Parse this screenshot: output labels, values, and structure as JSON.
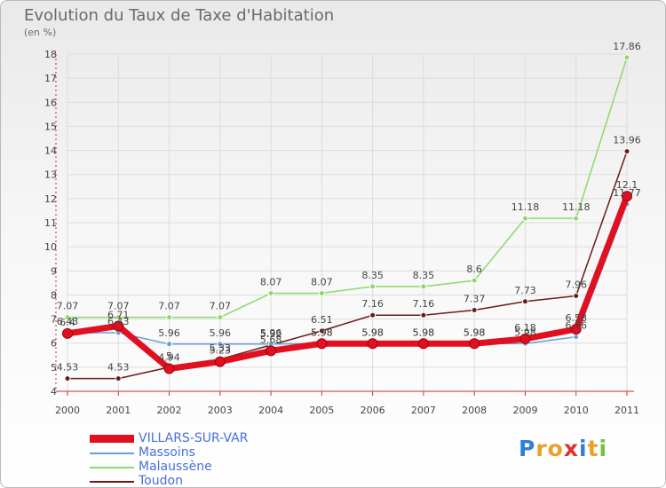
{
  "chart_data": {
    "type": "line",
    "title": "Evolution du Taux de Taxe d'Habitation",
    "subtitle": "(en %)",
    "categories": [
      "2000",
      "2001",
      "2002",
      "2003",
      "2004",
      "2005",
      "2006",
      "2007",
      "2008",
      "2009",
      "2010",
      "2011"
    ],
    "ylim": [
      4,
      18
    ],
    "yticks": [
      "4",
      "5",
      "6",
      "7",
      "8",
      "9",
      "10",
      "11",
      "12",
      "13",
      "14",
      "15",
      "16",
      "17",
      "18"
    ],
    "grid": true,
    "legend_position": "bottom-left",
    "series": [
      {
        "name": "Toudon",
        "color": "#6b1a1a",
        "values": [
          4.53,
          4.53,
          5,
          5.33,
          5.92,
          6.51,
          7.16,
          7.16,
          7.37,
          7.73,
          7.96,
          13.96
        ],
        "labels": [
          "4.53",
          "4.53",
          "5",
          "5.33",
          "5.92",
          "6.51",
          "7.16",
          "7.16",
          "7.37",
          "7.73",
          "7.96",
          "13.96"
        ]
      },
      {
        "name": "Malaussène",
        "color": "#8fd86b",
        "values": [
          7.07,
          7.07,
          7.07,
          7.07,
          8.07,
          8.07,
          8.35,
          8.35,
          8.6,
          11.18,
          11.18,
          17.86
        ],
        "labels": [
          "7.07",
          "7.07",
          "7.07",
          "7.07",
          "8.07",
          "8.07",
          "8.35",
          "8.35",
          "8.6",
          "11.18",
          "11.18",
          "17.86"
        ]
      },
      {
        "name": "Massoins",
        "color": "#6a9ed8",
        "values": [
          6.43,
          6.43,
          5.96,
          5.96,
          5.96,
          5.98,
          5.98,
          5.98,
          5.98,
          5.98,
          6.26,
          11.77
        ],
        "labels": [
          "6.43",
          "6.43",
          "5.96",
          "5.96",
          "5.96",
          "5.98",
          "5.98",
          "5.98",
          "5.98",
          "5.98",
          "6.26",
          "11.77"
        ]
      },
      {
        "name": "VILLARS-SUR-VAR",
        "color": "#e01020",
        "values": [
          6.4,
          6.71,
          4.94,
          5.23,
          5.68,
          5.98,
          5.98,
          5.98,
          5.98,
          6.18,
          6.58,
          12.1
        ],
        "labels": [
          "6.4",
          "6.71",
          "4.94",
          "5.23",
          "5.68",
          "5.98",
          "5.98",
          "5.98",
          "5.98",
          "6.18",
          "6.58",
          "12.1"
        ]
      }
    ]
  },
  "legend": [
    {
      "name": "VILLARS-SUR-VAR",
      "color": "#e01020"
    },
    {
      "name": "Massoins",
      "color": "#6a9ed8"
    },
    {
      "name": "Malaussène",
      "color": "#8fd86b"
    },
    {
      "name": "Toudon",
      "color": "#6b1a1a"
    }
  ],
  "logo": {
    "letters": [
      "P",
      "r",
      "o",
      "x",
      "i",
      "t",
      "i"
    ],
    "colors": [
      "#2f7fd8",
      "#e8a12a",
      "#e8a12a",
      "#e03030",
      "#2f7fd8",
      "#e8a12a",
      "#6cc43a"
    ]
  }
}
